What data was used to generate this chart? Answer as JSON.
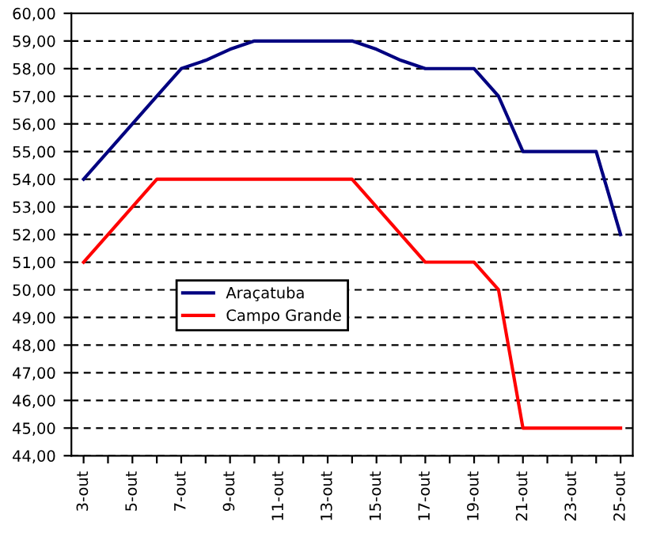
{
  "chart_data": {
    "type": "line",
    "categories": [
      "3-out",
      null,
      "5-out",
      null,
      "7-out",
      null,
      "9-out",
      null,
      "11-out",
      null,
      "13-out",
      null,
      "15-out",
      null,
      "17-out",
      null,
      "19-out",
      null,
      "21-out",
      null,
      "23-out",
      null,
      "25-out"
    ],
    "series": [
      {
        "name": "Araçatuba",
        "color": "#000080",
        "values": [
          54,
          55,
          56,
          57,
          58,
          58.3,
          58.7,
          59,
          59,
          59,
          59,
          59,
          58.7,
          58.3,
          58,
          58,
          58,
          57,
          55,
          55,
          55,
          55,
          52
        ]
      },
      {
        "name": "Campo Grande",
        "color": "#ff0000",
        "values": [
          51,
          52,
          53,
          54,
          54,
          54,
          54,
          54,
          54,
          54,
          54,
          54,
          53,
          52,
          51,
          51,
          51,
          50,
          45,
          45,
          45,
          45,
          45
        ]
      }
    ],
    "ylim": [
      44,
      60
    ],
    "yticks": [
      {
        "value": 44,
        "label": "44,00"
      },
      {
        "value": 45,
        "label": "45,00"
      },
      {
        "value": 46,
        "label": "46,00"
      },
      {
        "value": 47,
        "label": "47,00"
      },
      {
        "value": 48,
        "label": "48,00"
      },
      {
        "value": 49,
        "label": "49,00"
      },
      {
        "value": 50,
        "label": "50,00"
      },
      {
        "value": 51,
        "label": "51,00"
      },
      {
        "value": 52,
        "label": "52,00"
      },
      {
        "value": 53,
        "label": "53,00"
      },
      {
        "value": 54,
        "label": "54,00"
      },
      {
        "value": 55,
        "label": "55,00"
      },
      {
        "value": 56,
        "label": "56,00"
      },
      {
        "value": 57,
        "label": "57,00"
      },
      {
        "value": 58,
        "label": "58,00"
      },
      {
        "value": 59,
        "label": "59,00"
      },
      {
        "value": 60,
        "label": "60,00"
      }
    ],
    "grid": "y",
    "legend": "center",
    "marker": "none",
    "line_style": "solid"
  }
}
